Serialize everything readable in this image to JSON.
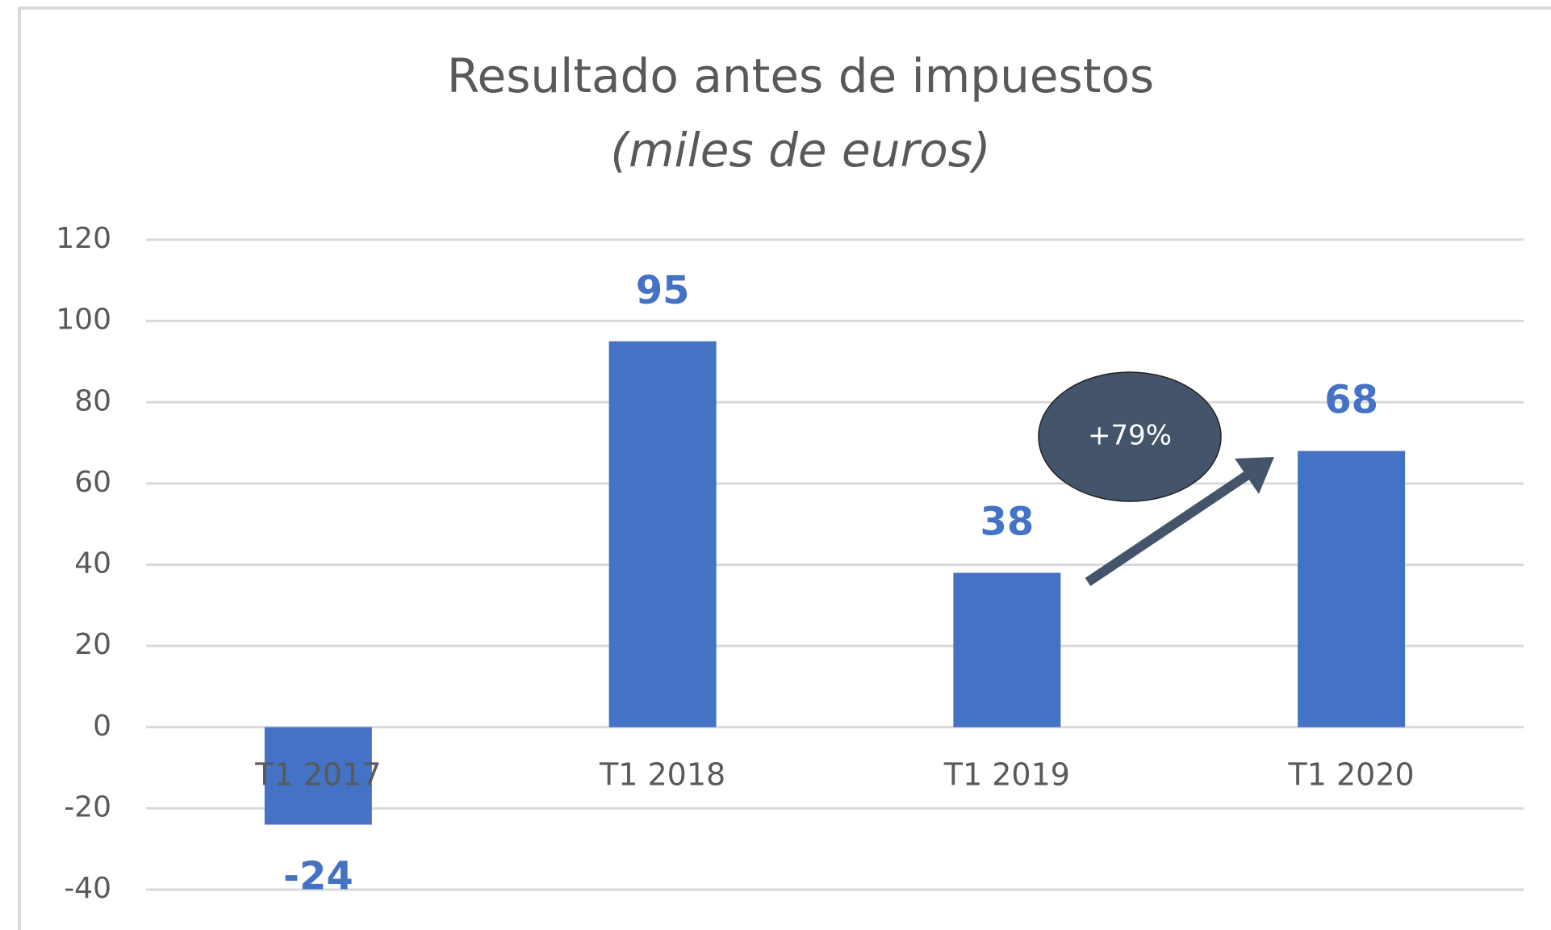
{
  "chart_data": {
    "type": "bar",
    "title": "Resultado antes de impuestos",
    "subtitle": "(miles de euros)",
    "categories": [
      "T1 2017",
      "T1 2018",
      "T1 2019",
      "T1 2020"
    ],
    "values": [
      -24,
      95,
      38,
      68
    ],
    "color": "#4472c4",
    "ylim": [
      -40,
      120
    ],
    "yticks": [
      -40,
      -20,
      0,
      20,
      40,
      60,
      80,
      100,
      120
    ],
    "grid": true,
    "annotation": "+79%",
    "annotation_color": "#44546a"
  }
}
